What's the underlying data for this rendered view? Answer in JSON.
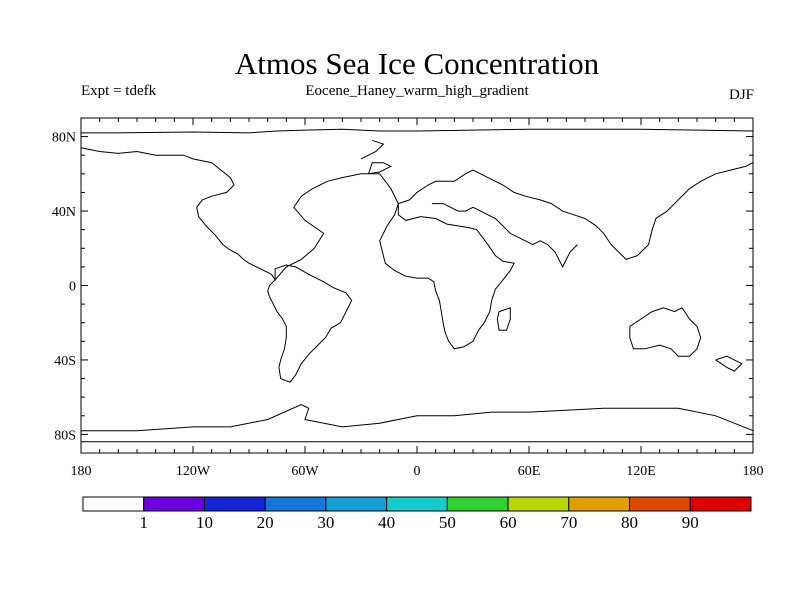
{
  "title": "Atmos Sea Ice Concentration",
  "subtitle_left": "Expt = tdefk",
  "subtitle_center": "Eocene_Haney_warm_high_gradient",
  "subtitle_right": "DJF",
  "map": {
    "projection": "cylindrical-equidistant",
    "lon_range": [
      -180,
      180
    ],
    "lat_range": [
      -90,
      90
    ],
    "x_ticks": [
      {
        "value": -180,
        "label": "180"
      },
      {
        "value": -120,
        "label": "120W"
      },
      {
        "value": -60,
        "label": "60W"
      },
      {
        "value": 0,
        "label": "0"
      },
      {
        "value": 60,
        "label": "60E"
      },
      {
        "value": 120,
        "label": "120E"
      },
      {
        "value": 180,
        "label": "180"
      }
    ],
    "y_ticks": [
      {
        "value": 80,
        "label": "80N"
      },
      {
        "value": 40,
        "label": "40N"
      },
      {
        "value": 0,
        "label": "0"
      },
      {
        "value": -40,
        "label": "40S"
      },
      {
        "value": -80,
        "label": "80S"
      }
    ],
    "coastlines": [
      [
        [
          -180,
          82
        ],
        [
          -160,
          82
        ],
        [
          -120,
          82.5
        ],
        [
          -90,
          82
        ],
        [
          -75,
          83
        ],
        [
          -60,
          83.5
        ],
        [
          -40,
          84
        ],
        [
          -20,
          83
        ],
        [
          0,
          83
        ],
        [
          30,
          83.5
        ],
        [
          60,
          84
        ],
        [
          90,
          84
        ],
        [
          120,
          84
        ],
        [
          150,
          83.5
        ],
        [
          180,
          83
        ]
      ],
      [
        [
          -180,
          74
        ],
        [
          -170,
          72
        ],
        [
          -160,
          71
        ],
        [
          -150,
          72
        ],
        [
          -140,
          70
        ],
        [
          -130,
          70
        ],
        [
          -125,
          70
        ],
        [
          -120,
          68
        ],
        [
          -110,
          66
        ],
        [
          -105,
          62
        ],
        [
          -100,
          58
        ],
        [
          -98,
          54
        ],
        [
          -102,
          50
        ],
        [
          -110,
          48
        ],
        [
          -115,
          46
        ],
        [
          -118,
          42
        ],
        [
          -117,
          37
        ],
        [
          -113,
          32
        ],
        [
          -108,
          27
        ],
        [
          -104,
          22
        ],
        [
          -100,
          19
        ],
        [
          -96,
          17
        ],
        [
          -93,
          14
        ],
        [
          -90,
          12
        ],
        [
          -86,
          10
        ],
        [
          -82,
          8
        ],
        [
          -78,
          6
        ],
        [
          -76,
          3
        ]
      ],
      [
        [
          -76,
          3
        ],
        [
          -79,
          0
        ],
        [
          -80,
          -3
        ],
        [
          -79,
          -6
        ],
        [
          -77,
          -10
        ],
        [
          -75,
          -14
        ],
        [
          -72,
          -18
        ],
        [
          -70,
          -22
        ],
        [
          -70,
          -28
        ],
        [
          -71,
          -34
        ],
        [
          -73,
          -40
        ],
        [
          -74,
          -44
        ],
        [
          -73,
          -50
        ],
        [
          -68,
          -52
        ],
        [
          -65,
          -48
        ],
        [
          -62,
          -42
        ],
        [
          -58,
          -37
        ],
        [
          -54,
          -33
        ],
        [
          -49,
          -28
        ],
        [
          -46,
          -23
        ],
        [
          -41,
          -20
        ],
        [
          -38,
          -14
        ],
        [
          -35,
          -8
        ],
        [
          -38,
          -4
        ],
        [
          -45,
          -1
        ],
        [
          -50,
          2
        ],
        [
          -58,
          6
        ],
        [
          -65,
          10
        ],
        [
          -70,
          11
        ],
        [
          -76,
          9
        ],
        [
          -76,
          3
        ]
      ],
      [
        [
          -76,
          3
        ],
        [
          -70,
          10
        ],
        [
          -62,
          14
        ],
        [
          -55,
          20
        ],
        [
          -50,
          28
        ],
        [
          -60,
          35
        ],
        [
          -66,
          42
        ],
        [
          -62,
          48
        ],
        [
          -56,
          52
        ],
        [
          -48,
          56
        ],
        [
          -40,
          58
        ],
        [
          -30,
          60
        ],
        [
          -20,
          60
        ]
      ],
      [
        [
          -26,
          60
        ],
        [
          -24,
          66
        ],
        [
          -18,
          66
        ],
        [
          -14,
          64
        ],
        [
          -20,
          61
        ],
        [
          -26,
          60
        ]
      ],
      [
        [
          -30,
          68
        ],
        [
          -22,
          72
        ],
        [
          -18,
          76
        ],
        [
          -24,
          78
        ]
      ],
      [
        [
          -20,
          60
        ],
        [
          -14,
          52
        ],
        [
          -10,
          44
        ],
        [
          -12,
          38
        ],
        [
          -16,
          32
        ],
        [
          -20,
          24
        ],
        [
          -18,
          16
        ],
        [
          -17,
          12
        ],
        [
          -12,
          8
        ],
        [
          -6,
          5
        ],
        [
          0,
          4
        ],
        [
          6,
          4
        ],
        [
          9,
          2
        ],
        [
          10,
          -3
        ],
        [
          12,
          -8
        ],
        [
          13,
          -14
        ],
        [
          14,
          -20
        ],
        [
          15,
          -25
        ],
        [
          17,
          -30
        ],
        [
          20,
          -34
        ],
        [
          25,
          -33
        ],
        [
          30,
          -30
        ],
        [
          33,
          -24
        ],
        [
          36,
          -20
        ],
        [
          39,
          -14
        ],
        [
          40,
          -8
        ],
        [
          42,
          -2
        ],
        [
          46,
          3
        ],
        [
          50,
          8
        ],
        [
          52,
          12
        ],
        [
          46,
          13
        ],
        [
          42,
          16
        ],
        [
          38,
          22
        ],
        [
          35,
          26
        ],
        [
          32,
          30
        ],
        [
          28,
          31
        ],
        [
          22,
          32
        ],
        [
          16,
          33
        ],
        [
          10,
          36
        ],
        [
          2,
          37
        ],
        [
          -6,
          35
        ],
        [
          -10,
          38
        ],
        [
          -10,
          44
        ]
      ],
      [
        [
          -10,
          44
        ],
        [
          -4,
          46
        ],
        [
          0,
          50
        ],
        [
          6,
          54
        ],
        [
          10,
          56
        ],
        [
          14,
          56
        ],
        [
          20,
          56
        ],
        [
          26,
          60
        ],
        [
          30,
          62
        ],
        [
          38,
          58
        ],
        [
          46,
          54
        ],
        [
          52,
          50
        ],
        [
          58,
          48
        ],
        [
          66,
          46
        ],
        [
          72,
          44
        ],
        [
          78,
          40
        ],
        [
          84,
          38
        ],
        [
          90,
          36
        ],
        [
          96,
          32
        ],
        [
          100,
          28
        ],
        [
          104,
          22
        ],
        [
          108,
          18
        ],
        [
          112,
          14
        ],
        [
          118,
          16
        ],
        [
          124,
          22
        ],
        [
          126,
          30
        ],
        [
          128,
          36
        ],
        [
          134,
          40
        ],
        [
          140,
          46
        ],
        [
          146,
          52
        ],
        [
          152,
          56
        ],
        [
          160,
          60
        ],
        [
          168,
          62
        ],
        [
          176,
          64
        ],
        [
          180,
          66
        ]
      ],
      [
        [
          8,
          44
        ],
        [
          14,
          44
        ],
        [
          18,
          42
        ],
        [
          22,
          40
        ],
        [
          26,
          40
        ],
        [
          30,
          42
        ],
        [
          34,
          40
        ],
        [
          38,
          38
        ],
        [
          42,
          36
        ],
        [
          46,
          32
        ],
        [
          50,
          28
        ],
        [
          54,
          26
        ],
        [
          58,
          24
        ],
        [
          62,
          22
        ],
        [
          66,
          24
        ],
        [
          70,
          22
        ],
        [
          74,
          18
        ],
        [
          78,
          10
        ],
        [
          80,
          14
        ],
        [
          82,
          18
        ],
        [
          86,
          22
        ]
      ],
      [
        [
          44,
          -14
        ],
        [
          50,
          -12
        ],
        [
          50,
          -18
        ],
        [
          48,
          -24
        ],
        [
          44,
          -24
        ],
        [
          43,
          -18
        ],
        [
          44,
          -14
        ]
      ],
      [
        [
          114,
          -22
        ],
        [
          114,
          -28
        ],
        [
          116,
          -34
        ],
        [
          122,
          -34
        ],
        [
          130,
          -32
        ],
        [
          136,
          -34
        ],
        [
          140,
          -38
        ],
        [
          146,
          -38
        ],
        [
          150,
          -34
        ],
        [
          152,
          -28
        ],
        [
          150,
          -22
        ],
        [
          146,
          -18
        ],
        [
          142,
          -12
        ],
        [
          138,
          -14
        ],
        [
          132,
          -12
        ],
        [
          126,
          -14
        ],
        [
          120,
          -18
        ],
        [
          114,
          -22
        ]
      ],
      [
        [
          160,
          -40
        ],
        [
          166,
          -44
        ],
        [
          170,
          -46
        ],
        [
          174,
          -42
        ],
        [
          170,
          -40
        ],
        [
          166,
          -38
        ],
        [
          160,
          -40
        ]
      ],
      [
        [
          -180,
          -78
        ],
        [
          -150,
          -78
        ],
        [
          -120,
          -76
        ],
        [
          -100,
          -76
        ],
        [
          -80,
          -72
        ],
        [
          -62,
          -64
        ],
        [
          -58,
          -66
        ],
        [
          -60,
          -72
        ],
        [
          -40,
          -76
        ],
        [
          -20,
          -74
        ],
        [
          0,
          -70
        ],
        [
          20,
          -70
        ],
        [
          40,
          -68
        ],
        [
          60,
          -68
        ],
        [
          80,
          -67
        ],
        [
          100,
          -66
        ],
        [
          120,
          -66
        ],
        [
          140,
          -66
        ],
        [
          160,
          -70
        ],
        [
          170,
          -74
        ],
        [
          180,
          -78
        ]
      ],
      [
        [
          -180,
          -84
        ],
        [
          -120,
          -84
        ],
        [
          -60,
          -84
        ],
        [
          0,
          -84
        ],
        [
          60,
          -84
        ],
        [
          120,
          -84
        ],
        [
          180,
          -84
        ]
      ]
    ]
  },
  "colorbar": {
    "colors": [
      "#ffffff",
      "#6c00e0",
      "#1426d8",
      "#1476d8",
      "#14a0d8",
      "#14cccc",
      "#30d030",
      "#b8d800",
      "#e0a000",
      "#e04800",
      "#e00000"
    ],
    "labels": [
      "1",
      "10",
      "20",
      "30",
      "40",
      "50",
      "60",
      "70",
      "80",
      "90"
    ]
  }
}
